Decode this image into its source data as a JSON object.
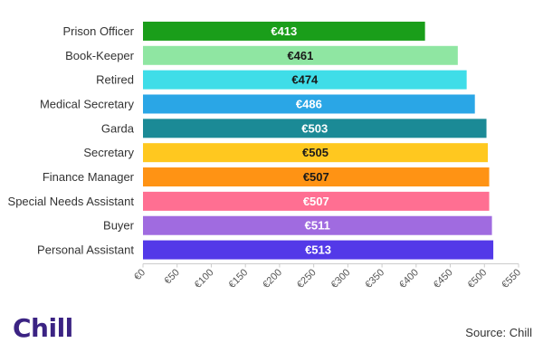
{
  "chart_data": {
    "type": "bar",
    "orientation": "horizontal",
    "categories": [
      "Prison Officer",
      "Book-Keeper",
      "Retired",
      "Medical Secretary",
      "Garda",
      "Secretary",
      "Finance Manager",
      "Special Needs Assistant",
      "Buyer",
      "Personal Assistant"
    ],
    "values": [
      413,
      461,
      474,
      486,
      503,
      505,
      507,
      507,
      511,
      513
    ],
    "value_labels": [
      "€413",
      "€461",
      "€474",
      "€486",
      "€503",
      "€505",
      "€507",
      "€507",
      "€511",
      "€513"
    ],
    "bar_colors": [
      "#1a9e1a",
      "#8fe6a2",
      "#3fdde8",
      "#2aa6e6",
      "#1b8a96",
      "#ffc81f",
      "#ff9314",
      "#ff6f92",
      "#a06be0",
      "#5339e8"
    ],
    "label_colors": [
      "#ffffff",
      "#1a1a1a",
      "#1a1a1a",
      "#ffffff",
      "#ffffff",
      "#1a1a1a",
      "#1a1a1a",
      "#ffffff",
      "#ffffff",
      "#ffffff"
    ],
    "xlim": [
      0,
      550
    ],
    "xticks": [
      "€0",
      "€50",
      "€100",
      "€150",
      "€200",
      "€250",
      "€300",
      "€350",
      "€400",
      "€450",
      "€500",
      "€550"
    ],
    "grid": false
  },
  "brand": {
    "logo_text": "Chill",
    "logo_color": "#3b2383"
  },
  "source_text": "Source: Chill"
}
